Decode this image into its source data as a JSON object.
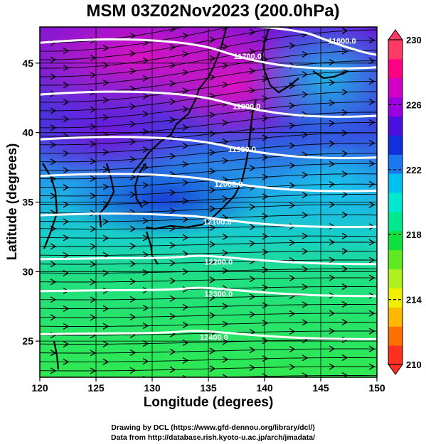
{
  "title": "MSM 03Z02Nov2023 (200.0hPa)",
  "credits": {
    "line1": "Drawing by DCL (https://www.gfd-dennou.org/library/dcl/)",
    "line2": "Data from http://database.rish.kyoto-u.ac.jp/arch/jmadata/"
  },
  "map": {
    "xlabel": "Longitude (degrees)",
    "ylabel": "Latitude  (degrees)",
    "xlim": [
      120,
      150
    ],
    "ylim": [
      22.4,
      47.6
    ],
    "xticks": [
      "120",
      "125",
      "130",
      "135",
      "140",
      "145",
      "150"
    ],
    "yticks": [
      "25",
      "30",
      "35",
      "40",
      "45"
    ],
    "fill": "wind speed / temperature field shaded magenta→blue→cyan→green",
    "vectors": "black streamlines with arrowheads, flow generally west→east",
    "contours": [
      {
        "label": "11600.0",
        "lon": 146.9,
        "lat": 46.6
      },
      {
        "label": "11700.0",
        "lon": 138.5,
        "lat": 45.5
      },
      {
        "label": "11800.0",
        "lon": 138.4,
        "lat": 41.9
      },
      {
        "label": "11900.0",
        "lon": 138.0,
        "lat": 38.8
      },
      {
        "label": "12000.0",
        "lon": 136.8,
        "lat": 36.3
      },
      {
        "label": "12100.0",
        "lon": 135.8,
        "lat": 33.6
      },
      {
        "label": "12200.0",
        "lon": 135.9,
        "lat": 30.7
      },
      {
        "label": "12300.0",
        "lon": 135.9,
        "lat": 28.4
      },
      {
        "label": "12400.0",
        "lon": 135.5,
        "lat": 25.3
      }
    ]
  },
  "colorbar": {
    "min": 210,
    "max": 230,
    "ticks": [
      "230",
      "226",
      "222",
      "218",
      "214",
      "210"
    ],
    "colors": [
      "#ff3a64",
      "#ff0082",
      "#d000c8",
      "#9a00e0",
      "#4a10e0",
      "#1030d8",
      "#1c78f0",
      "#00c0f0",
      "#00e8d0",
      "#00e890",
      "#10e040",
      "#60e820",
      "#b0f020",
      "#f0f000",
      "#ffb800",
      "#ff7000",
      "#ff3020"
    ]
  }
}
